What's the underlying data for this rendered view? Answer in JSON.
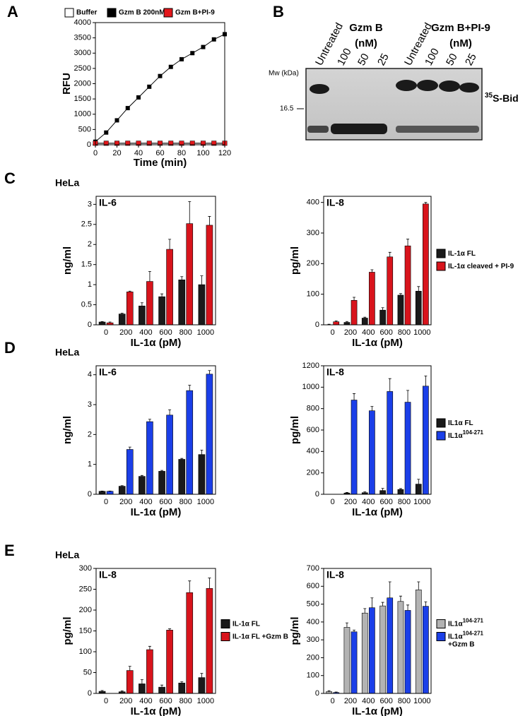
{
  "chart_data": [
    {
      "type": "line",
      "panel_label": "A",
      "xlabel": "Time (min)",
      "ylabel": "RFU",
      "x": [
        0,
        10,
        20,
        30,
        40,
        50,
        60,
        70,
        80,
        90,
        100,
        110,
        120
      ],
      "series": [
        {
          "name": "Buffer",
          "color": "#ffffff",
          "values": [
            50,
            50,
            50,
            50,
            50,
            50,
            50,
            50,
            50,
            50,
            50,
            50,
            50
          ]
        },
        {
          "name": "Gzm B 200nM",
          "color": "#000000",
          "values": [
            100,
            400,
            800,
            1200,
            1550,
            1900,
            2250,
            2550,
            2800,
            3000,
            3200,
            3450,
            3620
          ]
        },
        {
          "name": "Gzm B+PI-9",
          "color": "#e3171b",
          "values": [
            50,
            50,
            50,
            50,
            50,
            50,
            50,
            50,
            50,
            50,
            50,
            50,
            50
          ]
        }
      ],
      "xlim": [
        0,
        120
      ],
      "ylim": [
        0,
        4000
      ],
      "xticks": [
        0,
        20,
        40,
        60,
        80,
        100,
        120
      ],
      "yticks": [
        0,
        500,
        1000,
        1500,
        2000,
        2500,
        3000,
        3500,
        4000
      ]
    },
    {
      "type": "bar",
      "panel_label": "C",
      "cell_line": "HeLa",
      "title": "IL-6",
      "ylabel": "ng/ml",
      "xlabel": "IL-1α (pM)",
      "categories": [
        "0",
        "200",
        "400",
        "600",
        "800",
        "1000"
      ],
      "series": [
        {
          "color": "#1a1a1a",
          "values": [
            0.07,
            0.27,
            0.47,
            0.7,
            1.12,
            1.0
          ],
          "errors": [
            0.01,
            0.02,
            0.08,
            0.07,
            0.08,
            0.22
          ]
        },
        {
          "color": "#d8141c",
          "values": [
            0.05,
            0.82,
            1.08,
            1.88,
            2.52,
            2.48
          ],
          "errors": [
            0.02,
            0.02,
            0.25,
            0.25,
            0.55,
            0.22
          ]
        }
      ],
      "ylim": [
        0,
        3.2
      ],
      "yticks": [
        0,
        0.5,
        1,
        1.5,
        2,
        2.5,
        3
      ]
    },
    {
      "type": "bar",
      "title": "IL-8",
      "ylabel": "pg/ml",
      "xlabel": "IL-1α (pM)",
      "legend": "right",
      "categories": [
        "0",
        "200",
        "400",
        "600",
        "800",
        "1000"
      ],
      "series": [
        {
          "name": "IL-1α FL",
          "color": "#1a1a1a",
          "values": [
            0,
            8,
            22,
            48,
            97,
            110
          ],
          "errors": [
            2,
            3,
            3,
            8,
            5,
            15
          ]
        },
        {
          "name": "IL-1α cleaved + PI-9",
          "color": "#d8141c",
          "values": [
            10,
            80,
            172,
            222,
            258,
            395
          ],
          "errors": [
            3,
            10,
            8,
            15,
            22,
            5
          ]
        }
      ],
      "ylim": [
        0,
        420
      ],
      "yticks": [
        0,
        100,
        200,
        300,
        400
      ]
    },
    {
      "type": "bar",
      "panel_label": "D",
      "cell_line": "HeLa",
      "title": "IL-6",
      "ylabel": "ng/ml",
      "xlabel": "IL-1α (pM)",
      "categories": [
        "0",
        "200",
        "400",
        "600",
        "800",
        "1000"
      ],
      "series": [
        {
          "color": "#1a1a1a",
          "values": [
            0.1,
            0.27,
            0.6,
            0.77,
            1.17,
            1.33
          ],
          "errors": [
            0.01,
            0.02,
            0.03,
            0.03,
            0.03,
            0.15
          ]
        },
        {
          "color": "#1b3fe8",
          "values": [
            0.1,
            1.5,
            2.43,
            2.65,
            3.47,
            4.02
          ],
          "errors": [
            0.01,
            0.08,
            0.08,
            0.18,
            0.18,
            0.12
          ]
        }
      ],
      "ylim": [
        0,
        4.3
      ],
      "yticks": [
        0,
        1,
        2,
        3,
        4
      ]
    },
    {
      "type": "bar",
      "title": "IL-8",
      "ylabel": "pg/ml",
      "xlabel": "IL-1α (pM)",
      "legend": "right",
      "categories": [
        "0",
        "200",
        "400",
        "600",
        "800",
        "1000"
      ],
      "series": [
        {
          "name": "IL1α FL",
          "color": "#1a1a1a",
          "values": [
            0,
            12,
            15,
            35,
            45,
            95
          ],
          "errors": [
            0,
            5,
            8,
            20,
            8,
            45
          ]
        },
        {
          "name": "IL1α",
          "name_sup": "104-271",
          "color": "#1b3fe8",
          "values": [
            0,
            880,
            780,
            960,
            860,
            1010
          ],
          "errors": [
            0,
            60,
            40,
            120,
            110,
            95
          ]
        }
      ],
      "ylim": [
        0,
        1200
      ],
      "yticks": [
        0,
        200,
        400,
        600,
        800,
        1000,
        1200
      ]
    },
    {
      "type": "bar",
      "panel_label": "E",
      "cell_line": "HeLa",
      "title": "IL-8",
      "ylabel": "pg/ml",
      "xlabel": "IL-1α (pM)",
      "legend": "right",
      "categories": [
        "0",
        "200",
        "400",
        "600",
        "800",
        "1000"
      ],
      "series": [
        {
          "name": "IL-1α FL",
          "color": "#1a1a1a",
          "values": [
            5,
            4,
            23,
            15,
            25,
            38
          ],
          "errors": [
            2,
            2,
            10,
            5,
            3,
            10
          ]
        },
        {
          "name": "IL-1α FL +Gzm B",
          "color": "#d8141c",
          "values": [
            0,
            55,
            105,
            152,
            242,
            252
          ],
          "errors": [
            0,
            10,
            8,
            3,
            28,
            25
          ]
        }
      ],
      "ylim": [
        0,
        300
      ],
      "yticks": [
        0,
        50,
        100,
        150,
        200,
        250,
        300
      ]
    },
    {
      "type": "bar",
      "title": "IL-8",
      "ylabel": "pg/ml",
      "xlabel": "IL-1α (pM)",
      "legend": "right",
      "categories": [
        "0",
        "200",
        "400",
        "600",
        "800",
        "1000"
      ],
      "series": [
        {
          "name": "IL1α",
          "name_sup": "104-271",
          "color": "#b3b3b3",
          "values": [
            10,
            370,
            450,
            490,
            515,
            580
          ],
          "errors": [
            5,
            25,
            25,
            20,
            30,
            45
          ]
        },
        {
          "name": "IL1α",
          "name_sup": "104-271",
          "name_after": "+Gzm B",
          "color": "#1b3fe8",
          "values": [
            5,
            345,
            480,
            535,
            465,
            488
          ],
          "errors": [
            3,
            10,
            55,
            90,
            30,
            25
          ]
        }
      ],
      "ylim": [
        0,
        700
      ],
      "yticks": [
        0,
        100,
        200,
        300,
        400,
        500,
        600,
        700
      ]
    }
  ],
  "gel": {
    "panel_label": "B",
    "lanes": [
      "Untreated",
      "100",
      "50",
      "25",
      "Untreated",
      "100",
      "50",
      "25"
    ],
    "groups": [
      {
        "name": "Gzm B",
        "unit": "(nM)"
      },
      {
        "name": "Gzm B+PI-9",
        "unit": "(nM)"
      }
    ],
    "mw_label": "Mw (kDa)",
    "marker": "16.5",
    "band_sup": "35",
    "band_label": "S-Bid"
  }
}
